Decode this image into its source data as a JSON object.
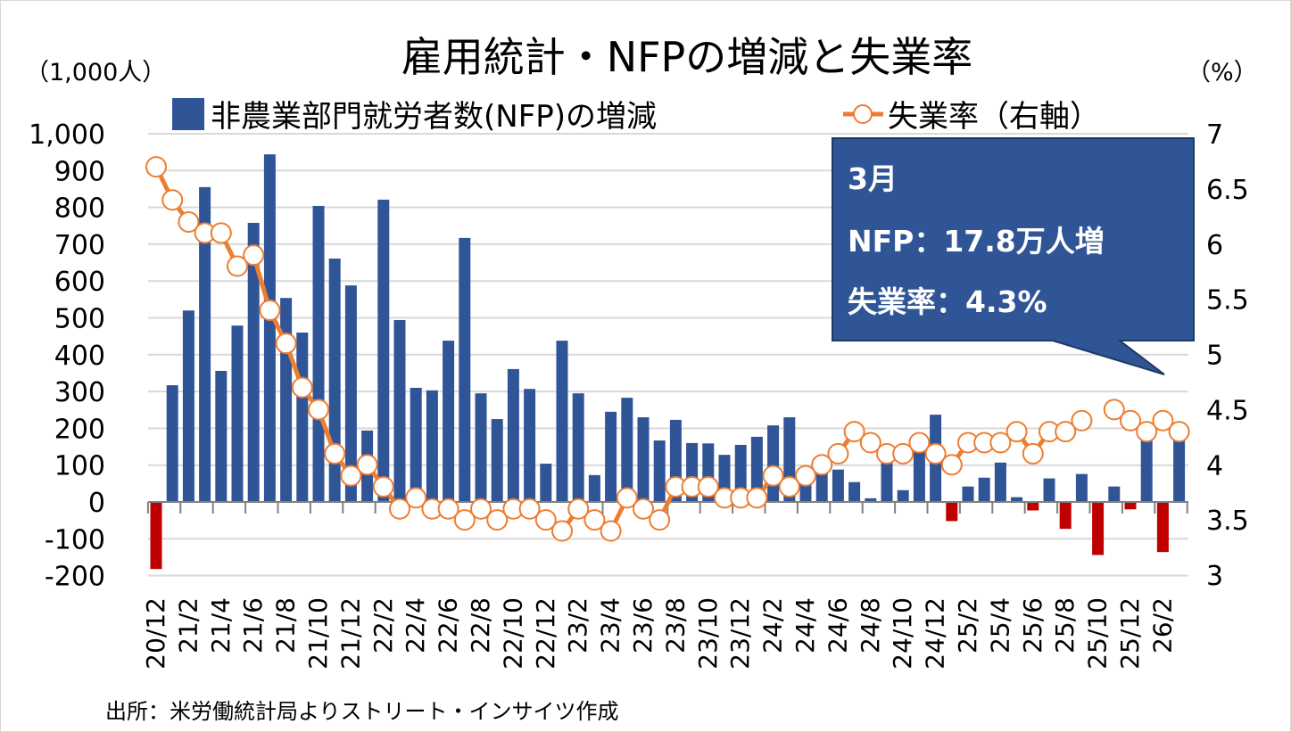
{
  "chart_data": {
    "type": "bar+line",
    "title": "雇用統計・NFPの増減と失業率",
    "left_unit": "（1,000人）",
    "right_unit": "（%）",
    "source": "出所：米労働統計局よりストリート・インサイツ作成",
    "grid": "horizontal",
    "legend_placement": "top",
    "y_left": {
      "min": -200,
      "max": 1000,
      "step": 100,
      "tick_labels": [
        "-200",
        "-100",
        "0",
        "100",
        "200",
        "300",
        "400",
        "500",
        "600",
        "700",
        "800",
        "900",
        "1,000"
      ]
    },
    "y_right": {
      "min": 3,
      "max": 7,
      "step": 0.5,
      "tick_labels": [
        "3",
        "3.5",
        "4",
        "4.5",
        "5",
        "5.5",
        "6",
        "6.5",
        "7"
      ]
    },
    "categories": [
      "20/12",
      "21/1",
      "21/2",
      "21/3",
      "21/4",
      "21/5",
      "21/6",
      "21/7",
      "21/8",
      "21/9",
      "21/10",
      "21/11",
      "21/12",
      "22/1",
      "22/2",
      "22/3",
      "22/4",
      "22/5",
      "22/6",
      "22/7",
      "22/8",
      "22/9",
      "22/10",
      "22/11",
      "22/12",
      "23/1",
      "23/2",
      "23/3",
      "23/4",
      "23/5",
      "23/6",
      "23/7",
      "23/8",
      "23/9",
      "23/10",
      "23/11",
      "23/12",
      "24/1",
      "24/2",
      "24/3",
      "24/4",
      "24/5",
      "24/6",
      "24/7",
      "24/8",
      "24/9",
      "24/10",
      "24/11",
      "24/12",
      "25/1",
      "25/2",
      "25/3",
      "25/4",
      "25/5",
      "25/6",
      "25/7",
      "25/8",
      "25/9",
      "25/10",
      "25/11",
      "25/12",
      "26/1",
      "26/2",
      "26/3"
    ],
    "series": [
      {
        "name": "非農業部門就労者数(NFP)の増減",
        "type": "bar",
        "axis": "left",
        "color": "#2f5597",
        "negative_color": "#c00000",
        "values": [
          -182,
          317,
          520,
          855,
          356,
          479,
          758,
          944,
          554,
          460,
          804,
          661,
          588,
          194,
          821,
          494,
          310,
          303,
          438,
          717,
          295,
          225,
          361,
          307,
          104,
          438,
          295,
          73,
          245,
          283,
          230,
          167,
          223,
          160,
          159,
          128,
          155,
          177,
          208,
          230,
          90,
          110,
          88,
          54,
          10,
          155,
          32,
          140,
          237,
          -52,
          42,
          66,
          107,
          13,
          -23,
          64,
          -73,
          76,
          -144,
          42,
          -20,
          170,
          -136,
          178
        ]
      },
      {
        "name": "失業率（右軸）",
        "type": "line",
        "axis": "right",
        "color": "#ed7d31",
        "values": [
          6.7,
          6.4,
          6.2,
          6.1,
          6.1,
          5.8,
          5.9,
          5.4,
          5.1,
          4.7,
          4.5,
          4.1,
          3.9,
          4.0,
          3.8,
          3.6,
          3.7,
          3.6,
          3.6,
          3.5,
          3.6,
          3.5,
          3.6,
          3.6,
          3.5,
          3.4,
          3.6,
          3.5,
          3.4,
          3.7,
          3.6,
          3.5,
          3.8,
          3.8,
          3.8,
          3.7,
          3.7,
          3.7,
          3.9,
          3.8,
          3.9,
          4.0,
          4.1,
          4.3,
          4.2,
          4.1,
          4.1,
          4.2,
          4.1,
          4.0,
          4.2,
          4.2,
          4.2,
          4.3,
          4.1,
          4.3,
          4.3,
          4.4,
          null,
          4.5,
          4.4,
          4.3,
          4.4,
          4.3
        ]
      }
    ],
    "callout": {
      "line1": "3月",
      "line2": "NFP：17.8万人増",
      "line3": "失業率：4.3%",
      "color": "#2f5597"
    }
  }
}
